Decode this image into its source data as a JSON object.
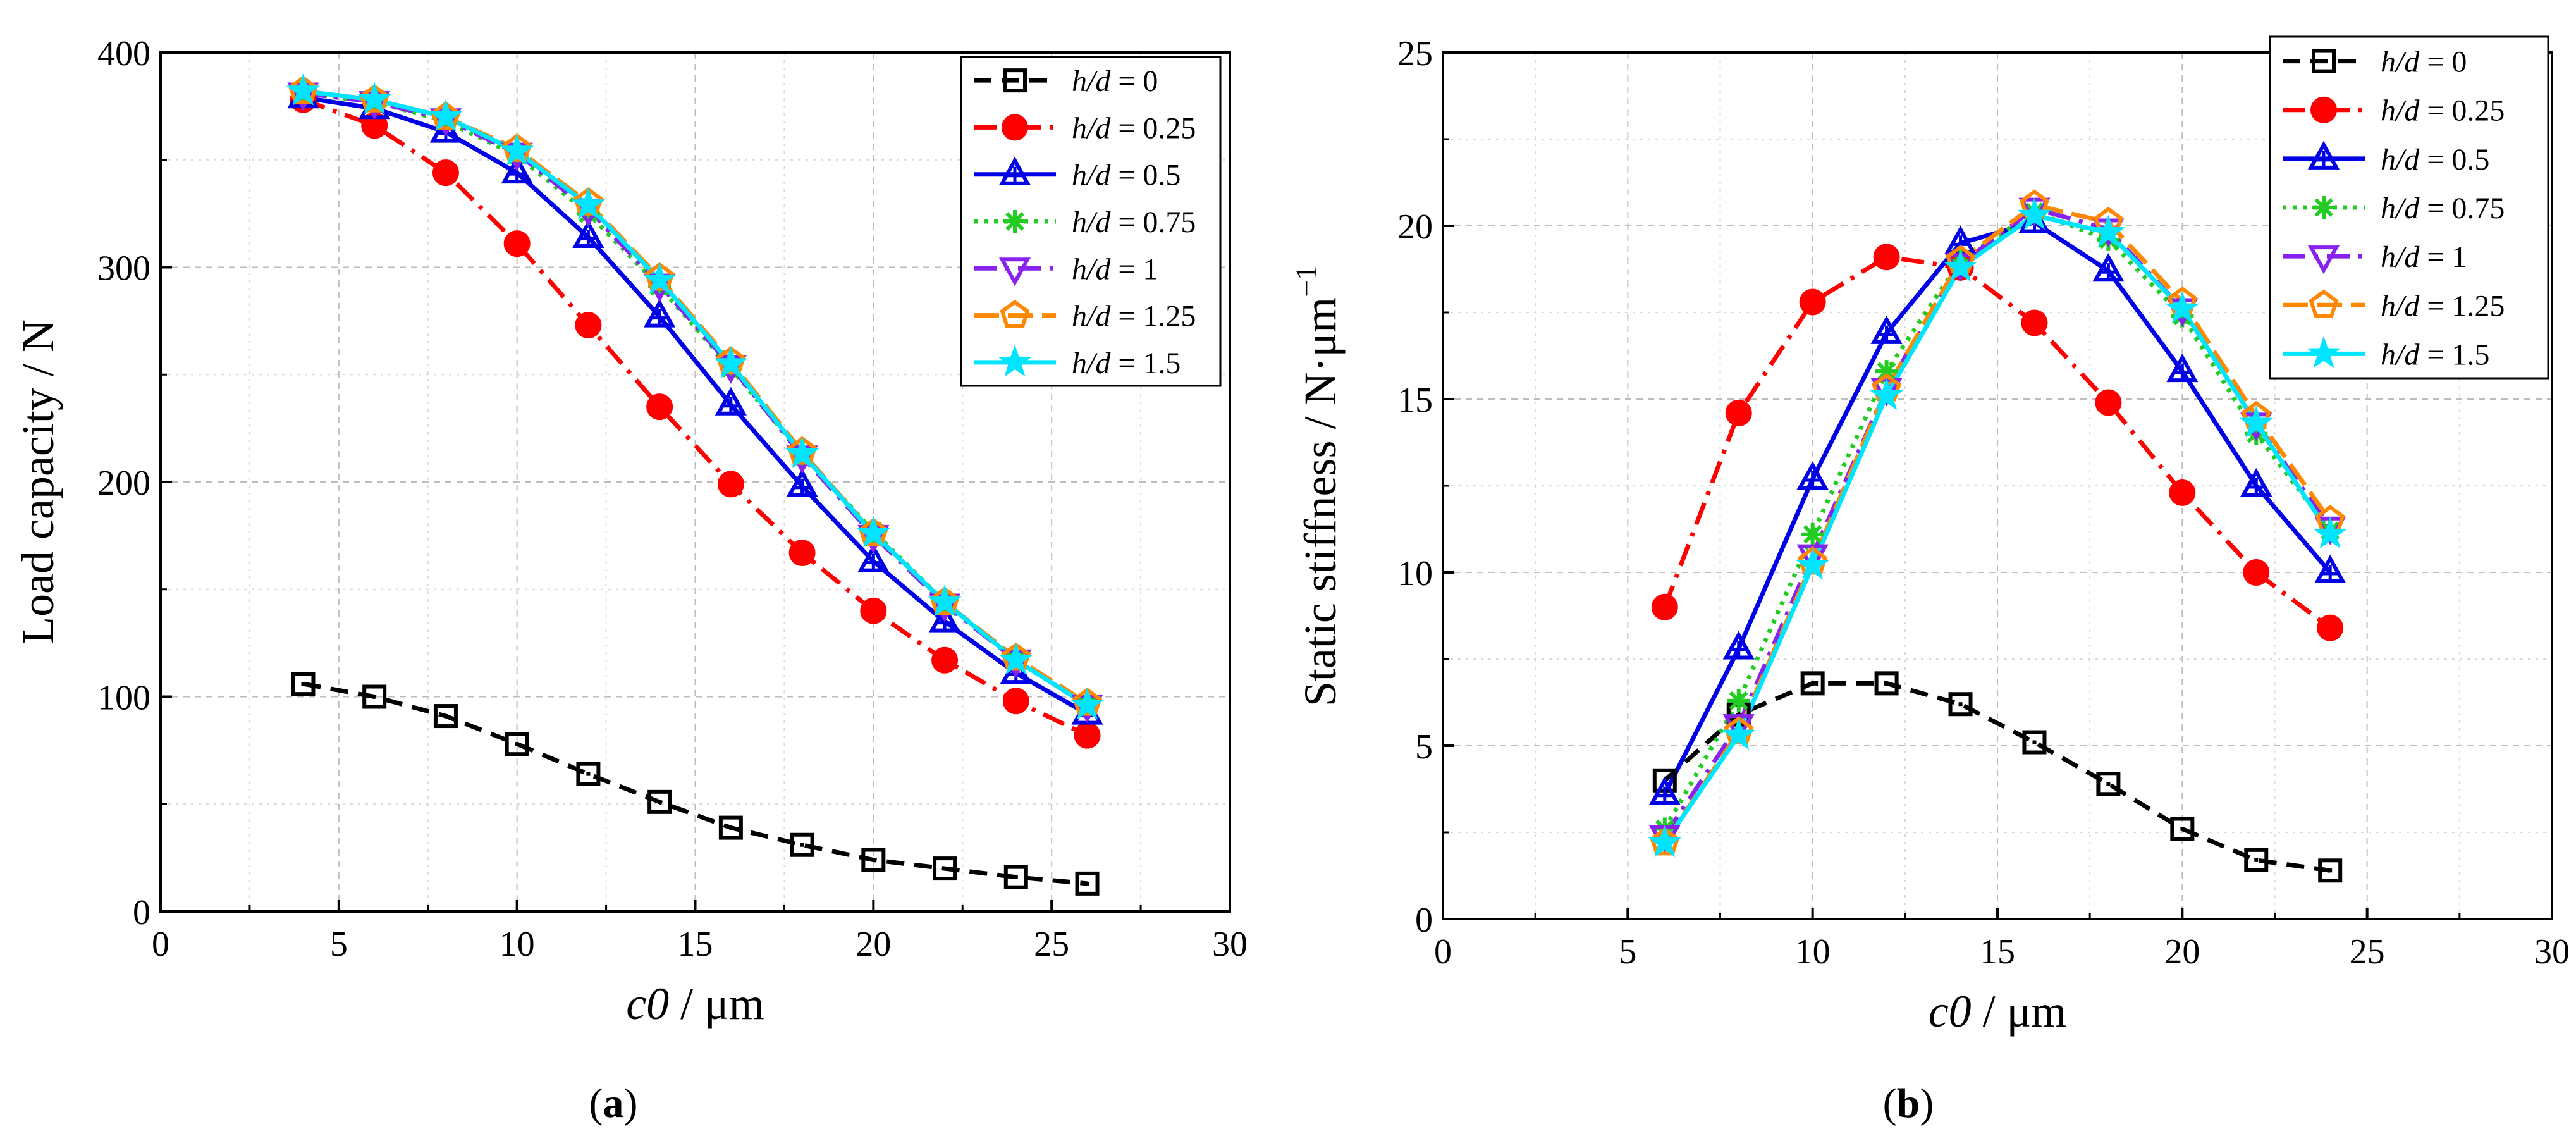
{
  "figure": {
    "panels": [
      {
        "label_open": "(",
        "label_letter": "a",
        "label_close": ")"
      },
      {
        "label_open": "(",
        "label_letter": "b",
        "label_close": ")"
      }
    ]
  },
  "series_styles": [
    {
      "color": "#000000",
      "marker": "square",
      "dash": "dash",
      "label_prefix": "h/d",
      "label_value": "0"
    },
    {
      "color": "#ff0000",
      "marker": "circle",
      "dash": "dashdot",
      "label_prefix": "h/d",
      "label_value": "0.25"
    },
    {
      "color": "#0000e6",
      "marker": "triangle-up",
      "dash": "solid",
      "label_prefix": "h/d",
      "label_value": "0.5"
    },
    {
      "color": "#22cc22",
      "marker": "asterisk",
      "dash": "dot",
      "label_prefix": "h/d",
      "label_value": "0.75"
    },
    {
      "color": "#8822ee",
      "marker": "triangle-down",
      "dash": "dashdot",
      "label_prefix": "h/d",
      "label_value": "1"
    },
    {
      "color": "#ff8800",
      "marker": "pentagon",
      "dash": "longdash",
      "label_prefix": "h/d",
      "label_value": "1.25"
    },
    {
      "color": "#00e5ff",
      "marker": "star",
      "dash": "solid",
      "label_prefix": "h/d",
      "label_value": "1.5"
    }
  ],
  "chart_data": [
    {
      "type": "line",
      "panel": "a",
      "xlabel_italic": "c0",
      "xlabel_rest": " / μm",
      "ylabel": "Load capacity / N",
      "xlim": [
        0,
        30
      ],
      "ylim": [
        0,
        400
      ],
      "xticks": [
        0,
        5,
        10,
        15,
        20,
        25,
        30
      ],
      "yticks": [
        0,
        100,
        200,
        300,
        400
      ],
      "grid": true,
      "legend_position": "top-right",
      "x": [
        4,
        6,
        8,
        10,
        12,
        14,
        16,
        18,
        20,
        22,
        24,
        26
      ],
      "series": [
        {
          "name": "h/d = 0",
          "values": [
            106,
            100,
            91,
            78,
            64,
            51,
            39,
            31,
            24,
            20,
            16,
            13
          ]
        },
        {
          "name": "h/d = 0.25",
          "values": [
            378,
            366,
            344,
            311,
            273,
            235,
            199,
            167,
            140,
            117,
            98,
            82
          ]
        },
        {
          "name": "h/d = 0.5",
          "values": [
            379,
            374,
            363,
            344,
            314,
            277,
            236,
            198,
            163,
            135,
            111,
            92
          ]
        },
        {
          "name": "h/d = 0.75",
          "values": [
            381,
            377,
            368,
            352,
            325,
            291,
            253,
            213,
            177,
            144,
            117,
            96
          ]
        },
        {
          "name": "h/d = 1",
          "values": [
            381,
            377,
            369,
            353,
            327,
            292,
            254,
            212,
            175,
            143,
            117,
            96
          ]
        },
        {
          "name": "h/d = 1.25",
          "values": [
            382,
            378,
            370,
            355,
            330,
            295,
            256,
            214,
            176,
            144,
            118,
            97
          ]
        },
        {
          "name": "h/d = 1.5",
          "values": [
            382,
            378,
            370,
            354,
            329,
            294,
            255,
            213,
            176,
            144,
            117,
            96
          ]
        }
      ]
    },
    {
      "type": "line",
      "panel": "b",
      "xlabel_italic": "c0",
      "xlabel_rest": " / μm",
      "ylabel": "Static stiffness / N·μm",
      "ylabel_sup": "−1",
      "xlim": [
        0,
        30
      ],
      "ylim": [
        0,
        25
      ],
      "xticks": [
        0,
        5,
        10,
        15,
        20,
        25,
        30
      ],
      "yticks": [
        0,
        5,
        10,
        15,
        20,
        25
      ],
      "grid": true,
      "legend_position": "top-right",
      "x": [
        6,
        8,
        10,
        12,
        14,
        16,
        18,
        20,
        22,
        24
      ],
      "series": [
        {
          "name": "h/d = 0",
          "values": [
            4.0,
            5.9,
            6.8,
            6.8,
            6.2,
            5.1,
            3.9,
            2.6,
            1.7,
            1.4
          ]
        },
        {
          "name": "h/d = 0.25",
          "values": [
            9.0,
            14.6,
            17.8,
            19.1,
            18.8,
            17.2,
            14.9,
            12.3,
            10.0,
            8.4
          ]
        },
        {
          "name": "h/d = 0.5",
          "values": [
            3.6,
            7.8,
            12.7,
            16.9,
            19.5,
            20.1,
            18.7,
            15.8,
            12.5,
            10.0
          ]
        },
        {
          "name": "h/d = 0.75",
          "values": [
            2.6,
            6.3,
            11.1,
            15.8,
            19.0,
            20.4,
            19.6,
            17.4,
            14.0,
            11.2
          ]
        },
        {
          "name": "h/d = 1",
          "values": [
            2.4,
            5.6,
            10.5,
            15.3,
            18.9,
            20.5,
            19.9,
            17.6,
            14.3,
            11.3
          ]
        },
        {
          "name": "h/d = 1.25",
          "values": [
            2.2,
            5.4,
            10.3,
            15.3,
            19.0,
            20.6,
            20.1,
            17.8,
            14.5,
            11.5
          ]
        },
        {
          "name": "h/d = 1.5",
          "values": [
            2.2,
            5.3,
            10.2,
            15.1,
            18.8,
            20.3,
            19.8,
            17.6,
            14.3,
            11.1
          ]
        }
      ]
    }
  ]
}
